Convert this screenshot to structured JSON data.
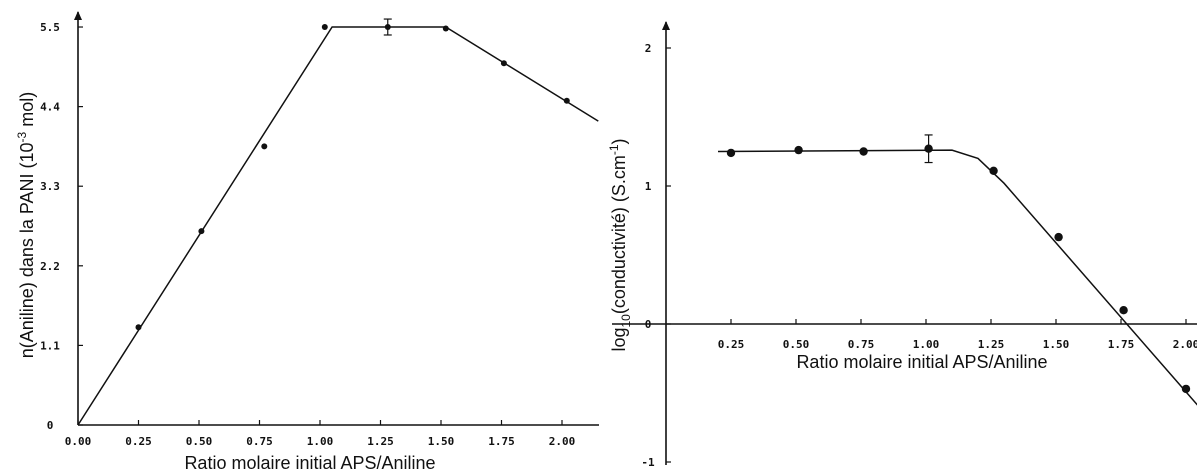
{
  "chart_data": [
    {
      "type": "line",
      "xlabel": "Ratio molaire initial APS/Aniline",
      "ylabel": {
        "main": "n(Aniline) dans la PANI (10",
        "sup": "-3",
        "tail": " mol)"
      },
      "x_ticks": [
        "0.00",
        "0.25",
        "0.50",
        "0.75",
        "1.00",
        "1.25",
        "1.50",
        "1.75",
        "2.00"
      ],
      "y_ticks": [
        "0",
        "1.1",
        "2.2",
        "3.3",
        "4.4",
        "5.5"
      ],
      "xlim": [
        0,
        2.15
      ],
      "ylim": [
        0,
        5.5
      ],
      "grid": false,
      "series": [
        {
          "points": [
            {
              "x": 0.25,
              "y": 1.35
            },
            {
              "x": 0.51,
              "y": 2.68
            },
            {
              "x": 0.77,
              "y": 3.85
            },
            {
              "x": 1.02,
              "y": 5.5
            },
            {
              "x": 1.28,
              "y": 5.5,
              "err": 0.11
            },
            {
              "x": 1.52,
              "y": 5.48
            },
            {
              "x": 1.76,
              "y": 5.0
            },
            {
              "x": 2.02,
              "y": 4.48
            }
          ],
          "fit_line": [
            {
              "x": 0.0,
              "y": 0.0
            },
            {
              "x": 1.05,
              "y": 5.5
            },
            {
              "x": 1.52,
              "y": 5.5
            },
            {
              "x": 2.15,
              "y": 4.2
            }
          ]
        }
      ]
    },
    {
      "type": "line",
      "xlabel": "Ratio molaire initial APS/Aniline",
      "ylabel": {
        "pre": "log",
        "sub": "10",
        "mid": "(conductivité) (S.cm",
        "sup": "-1",
        "tail": ")"
      },
      "x_ticks": [
        "0.25",
        "0.50",
        "0.75",
        "1.00",
        "1.25",
        "1.50",
        "1.75",
        "2.00"
      ],
      "y_ticks": [
        "-1",
        "0",
        "1",
        "2"
      ],
      "xlim": [
        0,
        2.05
      ],
      "ylim": [
        -1.2,
        2.1
      ],
      "grid": false,
      "series": [
        {
          "points": [
            {
              "x": 0.25,
              "y": 1.24
            },
            {
              "x": 0.51,
              "y": 1.26
            },
            {
              "x": 0.76,
              "y": 1.25
            },
            {
              "x": 1.01,
              "y": 1.27,
              "err": 0.1
            },
            {
              "x": 1.26,
              "y": 1.11
            },
            {
              "x": 1.51,
              "y": 0.63
            },
            {
              "x": 1.76,
              "y": 0.1
            },
            {
              "x": 2.0,
              "y": -0.47
            }
          ],
          "fit_line": [
            {
              "x": 0.2,
              "y": 1.25
            },
            {
              "x": 1.1,
              "y": 1.26
            },
            {
              "x": 1.2,
              "y": 1.2
            },
            {
              "x": 1.3,
              "y": 1.02
            },
            {
              "x": 2.05,
              "y": -0.6
            }
          ]
        }
      ]
    }
  ]
}
